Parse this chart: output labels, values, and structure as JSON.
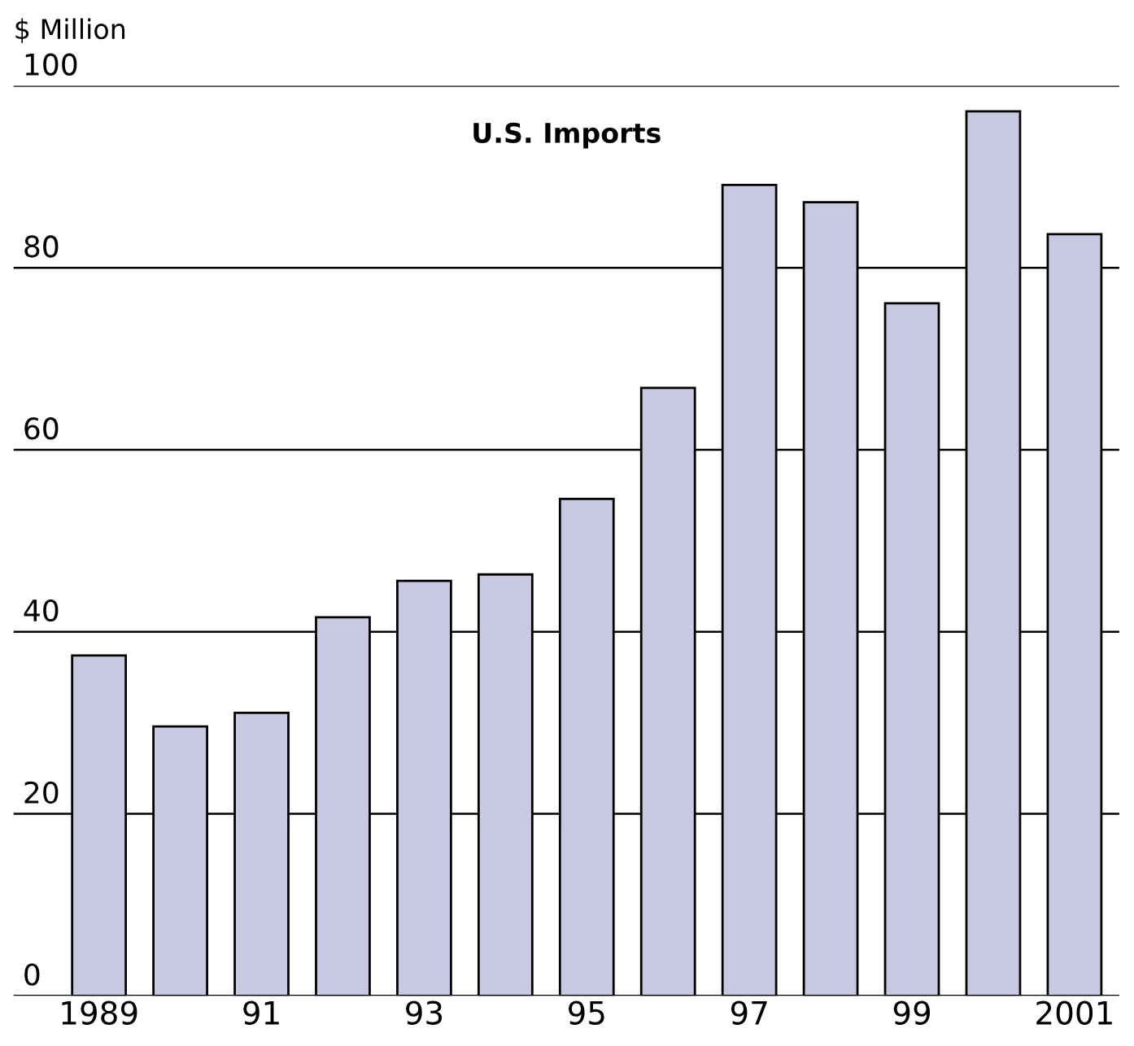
{
  "chart_data": {
    "type": "bar",
    "title": "U.S. Imports",
    "ylabel": "$ Million",
    "categories": [
      "1989",
      null,
      "91",
      null,
      "93",
      null,
      "95",
      null,
      "97",
      null,
      "99",
      null,
      "2001"
    ],
    "values": [
      37.4,
      29.6,
      31.1,
      41.6,
      45.6,
      46.3,
      54.6,
      66.8,
      89.1,
      87.2,
      76.1,
      97.2,
      83.7
    ],
    "color": "#c8c8e0",
    "ylim": [
      0,
      100
    ],
    "yticks": [
      0,
      20,
      40,
      60,
      80,
      100
    ],
    "grid": "y"
  }
}
